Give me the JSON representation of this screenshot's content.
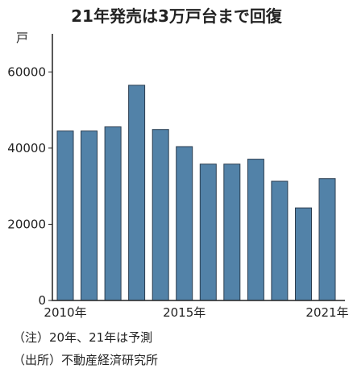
{
  "chart_data": {
    "type": "bar",
    "title": "21年発売は3万戸台まで回復",
    "ylabel": "戸",
    "xlabel": "",
    "ylim": [
      0,
      70000
    ],
    "yticks": [
      "0",
      "20000",
      "40000",
      "60000"
    ],
    "ytick_values": [
      0,
      20000,
      40000,
      60000
    ],
    "categories": [
      "2010",
      "2011",
      "2012",
      "2013",
      "2014",
      "2015",
      "2016",
      "2017",
      "2018",
      "2019",
      "2020",
      "2021"
    ],
    "values": [
      44500,
      44500,
      45600,
      56500,
      44900,
      40400,
      35800,
      35800,
      37100,
      31300,
      24300,
      32000
    ],
    "xtick_labels": [
      {
        "index": 0,
        "text": "2010年"
      },
      {
        "index": 5,
        "text": "2015年"
      },
      {
        "index": 11,
        "text": "2021年"
      }
    ],
    "bar_color": "#5282a8",
    "grid": false
  },
  "notes": {
    "note1": "（注）20年、21年は予測",
    "source": "（出所）不動産経済研究所"
  }
}
